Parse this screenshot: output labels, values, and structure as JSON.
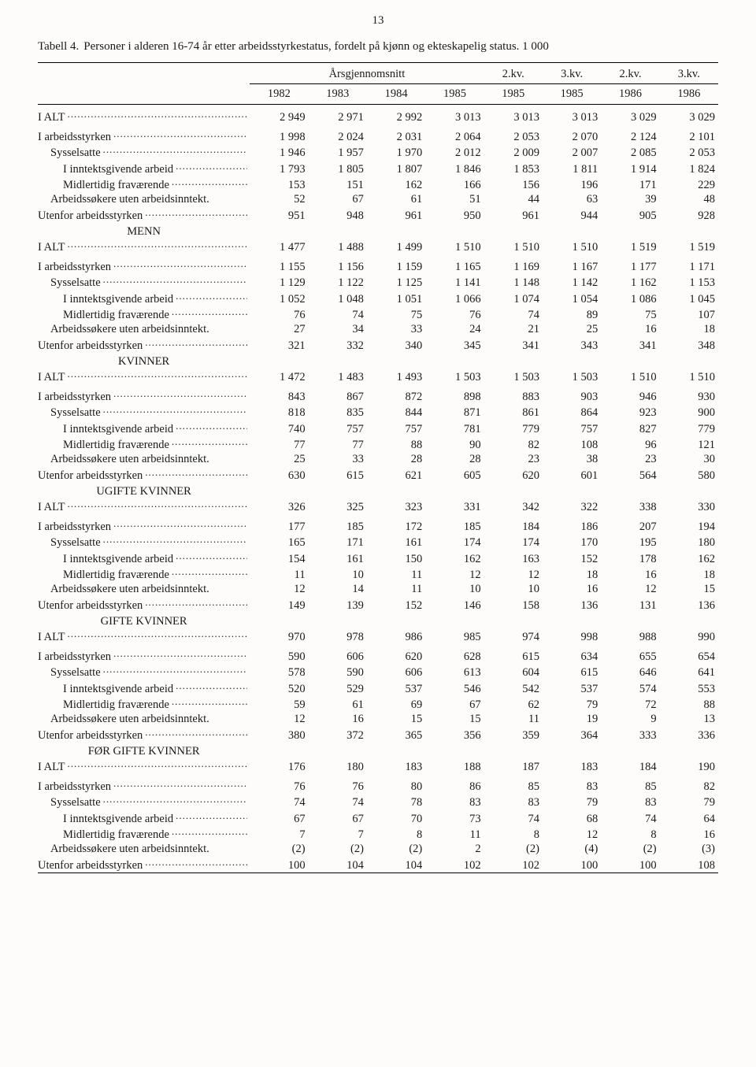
{
  "page_number": "13",
  "caption_label": "Tabell 4.",
  "caption_text": "Personer i alderen 16-74 år etter arbeidsstyrkestatus, fordelt på kjønn og ekteskapelig status. 1 000",
  "header_group": "Årsgjennomsnitt",
  "header_quarters": [
    "2.kv.",
    "3.kv.",
    "2.kv.",
    "3.kv."
  ],
  "header_years": [
    "1982",
    "1983",
    "1984",
    "1985",
    "1985",
    "1985",
    "1986",
    "1986"
  ],
  "row_labels": {
    "ialt": "I ALT",
    "iarb": "I arbeidsstyrken",
    "syss": "Sysselsatte",
    "innt": "I inntektsgivende arbeid",
    "midl": "Midlertidig fraværende",
    "arbs": "Arbeidssøkere uten arbeidsinntekt.",
    "utenf": "Utenfor arbeidsstyrken"
  },
  "section_titles": {
    "menn": "MENN",
    "kvinner": "KVINNER",
    "ugifte": "UGIFTE KVINNER",
    "gifte": "GIFTE KVINNER",
    "for": "FØR GIFTE KVINNER"
  },
  "sections": [
    {
      "title_key": null,
      "rows": [
        {
          "k": "ialt",
          "i": 0,
          "v": [
            "2 949",
            "2 971",
            "2 992",
            "3 013",
            "3 013",
            "3 013",
            "3 029",
            "3 029"
          ]
        },
        {
          "k": "iarb",
          "i": 0,
          "v": [
            "1 998",
            "2 024",
            "2 031",
            "2 064",
            "2 053",
            "2 070",
            "2 124",
            "2 101"
          ]
        },
        {
          "k": "syss",
          "i": 1,
          "v": [
            "1 946",
            "1 957",
            "1 970",
            "2 012",
            "2 009",
            "2 007",
            "2 085",
            "2 053"
          ]
        },
        {
          "k": "innt",
          "i": 2,
          "v": [
            "1 793",
            "1 805",
            "1 807",
            "1 846",
            "1 853",
            "1 811",
            "1 914",
            "1 824"
          ]
        },
        {
          "k": "midl",
          "i": 2,
          "v": [
            "153",
            "151",
            "162",
            "166",
            "156",
            "196",
            "171",
            "229"
          ]
        },
        {
          "k": "arbs",
          "i": 1,
          "v": [
            "52",
            "67",
            "61",
            "51",
            "44",
            "63",
            "39",
            "48"
          ]
        },
        {
          "k": "utenf",
          "i": 0,
          "v": [
            "951",
            "948",
            "961",
            "950",
            "961",
            "944",
            "905",
            "928"
          ]
        }
      ]
    },
    {
      "title_key": "menn",
      "rows": [
        {
          "k": "ialt",
          "i": 0,
          "v": [
            "1 477",
            "1 488",
            "1 499",
            "1 510",
            "1 510",
            "1 510",
            "1 519",
            "1 519"
          ]
        },
        {
          "k": "iarb",
          "i": 0,
          "v": [
            "1 155",
            "1 156",
            "1 159",
            "1 165",
            "1 169",
            "1 167",
            "1 177",
            "1 171"
          ]
        },
        {
          "k": "syss",
          "i": 1,
          "v": [
            "1 129",
            "1 122",
            "1 125",
            "1 141",
            "1 148",
            "1 142",
            "1 162",
            "1 153"
          ]
        },
        {
          "k": "innt",
          "i": 2,
          "v": [
            "1 052",
            "1 048",
            "1 051",
            "1 066",
            "1 074",
            "1 054",
            "1 086",
            "1 045"
          ]
        },
        {
          "k": "midl",
          "i": 2,
          "v": [
            "76",
            "74",
            "75",
            "76",
            "74",
            "89",
            "75",
            "107"
          ]
        },
        {
          "k": "arbs",
          "i": 1,
          "v": [
            "27",
            "34",
            "33",
            "24",
            "21",
            "25",
            "16",
            "18"
          ]
        },
        {
          "k": "utenf",
          "i": 0,
          "v": [
            "321",
            "332",
            "340",
            "345",
            "341",
            "343",
            "341",
            "348"
          ]
        }
      ]
    },
    {
      "title_key": "kvinner",
      "rows": [
        {
          "k": "ialt",
          "i": 0,
          "v": [
            "1 472",
            "1 483",
            "1 493",
            "1 503",
            "1 503",
            "1 503",
            "1 510",
            "1 510"
          ]
        },
        {
          "k": "iarb",
          "i": 0,
          "v": [
            "843",
            "867",
            "872",
            "898",
            "883",
            "903",
            "946",
            "930"
          ]
        },
        {
          "k": "syss",
          "i": 1,
          "v": [
            "818",
            "835",
            "844",
            "871",
            "861",
            "864",
            "923",
            "900"
          ]
        },
        {
          "k": "innt",
          "i": 2,
          "v": [
            "740",
            "757",
            "757",
            "781",
            "779",
            "757",
            "827",
            "779"
          ]
        },
        {
          "k": "midl",
          "i": 2,
          "v": [
            "77",
            "77",
            "88",
            "90",
            "82",
            "108",
            "96",
            "121"
          ]
        },
        {
          "k": "arbs",
          "i": 1,
          "v": [
            "25",
            "33",
            "28",
            "28",
            "23",
            "38",
            "23",
            "30"
          ]
        },
        {
          "k": "utenf",
          "i": 0,
          "v": [
            "630",
            "615",
            "621",
            "605",
            "620",
            "601",
            "564",
            "580"
          ]
        }
      ]
    },
    {
      "title_key": "ugifte",
      "rows": [
        {
          "k": "ialt",
          "i": 0,
          "v": [
            "326",
            "325",
            "323",
            "331",
            "342",
            "322",
            "338",
            "330"
          ]
        },
        {
          "k": "iarb",
          "i": 0,
          "v": [
            "177",
            "185",
            "172",
            "185",
            "184",
            "186",
            "207",
            "194"
          ]
        },
        {
          "k": "syss",
          "i": 1,
          "v": [
            "165",
            "171",
            "161",
            "174",
            "174",
            "170",
            "195",
            "180"
          ]
        },
        {
          "k": "innt",
          "i": 2,
          "v": [
            "154",
            "161",
            "150",
            "162",
            "163",
            "152",
            "178",
            "162"
          ]
        },
        {
          "k": "midl",
          "i": 2,
          "v": [
            "11",
            "10",
            "11",
            "12",
            "12",
            "18",
            "16",
            "18"
          ]
        },
        {
          "k": "arbs",
          "i": 1,
          "v": [
            "12",
            "14",
            "11",
            "10",
            "10",
            "16",
            "12",
            "15"
          ]
        },
        {
          "k": "utenf",
          "i": 0,
          "v": [
            "149",
            "139",
            "152",
            "146",
            "158",
            "136",
            "131",
            "136"
          ]
        }
      ]
    },
    {
      "title_key": "gifte",
      "rows": [
        {
          "k": "ialt",
          "i": 0,
          "v": [
            "970",
            "978",
            "986",
            "985",
            "974",
            "998",
            "988",
            "990"
          ]
        },
        {
          "k": "iarb",
          "i": 0,
          "v": [
            "590",
            "606",
            "620",
            "628",
            "615",
            "634",
            "655",
            "654"
          ]
        },
        {
          "k": "syss",
          "i": 1,
          "v": [
            "578",
            "590",
            "606",
            "613",
            "604",
            "615",
            "646",
            "641"
          ]
        },
        {
          "k": "innt",
          "i": 2,
          "v": [
            "520",
            "529",
            "537",
            "546",
            "542",
            "537",
            "574",
            "553"
          ]
        },
        {
          "k": "midl",
          "i": 2,
          "v": [
            "59",
            "61",
            "69",
            "67",
            "62",
            "79",
            "72",
            "88"
          ]
        },
        {
          "k": "arbs",
          "i": 1,
          "v": [
            "12",
            "16",
            "15",
            "15",
            "11",
            "19",
            "9",
            "13"
          ]
        },
        {
          "k": "utenf",
          "i": 0,
          "v": [
            "380",
            "372",
            "365",
            "356",
            "359",
            "364",
            "333",
            "336"
          ]
        }
      ]
    },
    {
      "title_key": "for",
      "rows": [
        {
          "k": "ialt",
          "i": 0,
          "v": [
            "176",
            "180",
            "183",
            "188",
            "187",
            "183",
            "184",
            "190"
          ]
        },
        {
          "k": "iarb",
          "i": 0,
          "v": [
            "76",
            "76",
            "80",
            "86",
            "85",
            "83",
            "85",
            "82"
          ]
        },
        {
          "k": "syss",
          "i": 1,
          "v": [
            "74",
            "74",
            "78",
            "83",
            "83",
            "79",
            "83",
            "79"
          ]
        },
        {
          "k": "innt",
          "i": 2,
          "v": [
            "67",
            "67",
            "70",
            "73",
            "74",
            "68",
            "74",
            "64"
          ]
        },
        {
          "k": "midl",
          "i": 2,
          "v": [
            "7",
            "7",
            "8",
            "11",
            "8",
            "12",
            "8",
            "16"
          ]
        },
        {
          "k": "arbs",
          "i": 1,
          "v": [
            "(2)",
            "(2)",
            "(2)",
            "2",
            "(2)",
            "(4)",
            "(2)",
            "(3)"
          ]
        },
        {
          "k": "utenf",
          "i": 0,
          "v": [
            "100",
            "104",
            "104",
            "102",
            "102",
            "100",
            "100",
            "108"
          ]
        }
      ]
    }
  ]
}
